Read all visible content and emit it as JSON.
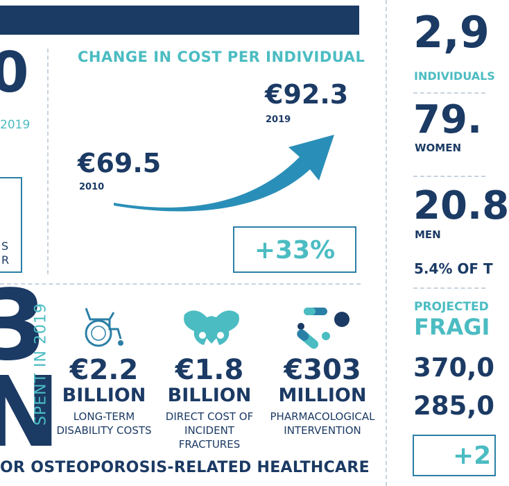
{
  "left_panel": {
    "big_digit": "0",
    "year_label": "2019",
    "box_lines": [
      "S",
      "R"
    ]
  },
  "cost_change": {
    "title": "CHANGE IN COST PER INDIVIDUAL",
    "value_2019": "€92.3",
    "year_2019": "2019",
    "value_2010": "€69.5",
    "year_2010": "2010",
    "percent_change": "+33%"
  },
  "spending": {
    "big_digit": "3",
    "big_letter": "N",
    "spent_label": "SPENT IN 2019",
    "items": [
      {
        "icon": "wheelchair-icon",
        "value": "€2.2",
        "unit": "BILLION",
        "desc_lines": [
          "LONG-TERM",
          "DISABILITY COSTS"
        ]
      },
      {
        "icon": "pelvis-icon",
        "value": "€1.8",
        "unit": "BILLION",
        "desc_lines": [
          "DIRECT COST OF",
          "INCIDENT",
          "FRACTURES"
        ]
      },
      {
        "icon": "pills-icon",
        "value": "€303",
        "unit": "MILLION",
        "desc_lines": [
          "PHARMACOLOGICAL",
          "INTERVENTION"
        ]
      }
    ],
    "footer": "OR OSTEOPOROSIS-RELATED HEALTHCARE"
  },
  "right_panel": {
    "stat_big": "2,9",
    "stat_big_label": "INDIVIDUALS",
    "women_value": "79.",
    "women_label": "WOMEN",
    "men_value": "20.8",
    "men_label": "MEN",
    "share_text": "5.4% OF T",
    "projected_label": "PROJECTED",
    "fragility_label": "FRAGI",
    "value_a": "370,0",
    "value_b": "285,0",
    "box_value": "+2"
  },
  "colors": {
    "navy": "#1b3a64",
    "teal": "#4bbcc2",
    "arrow": "#2a8fb8",
    "box_border": "#2a7fa6"
  }
}
